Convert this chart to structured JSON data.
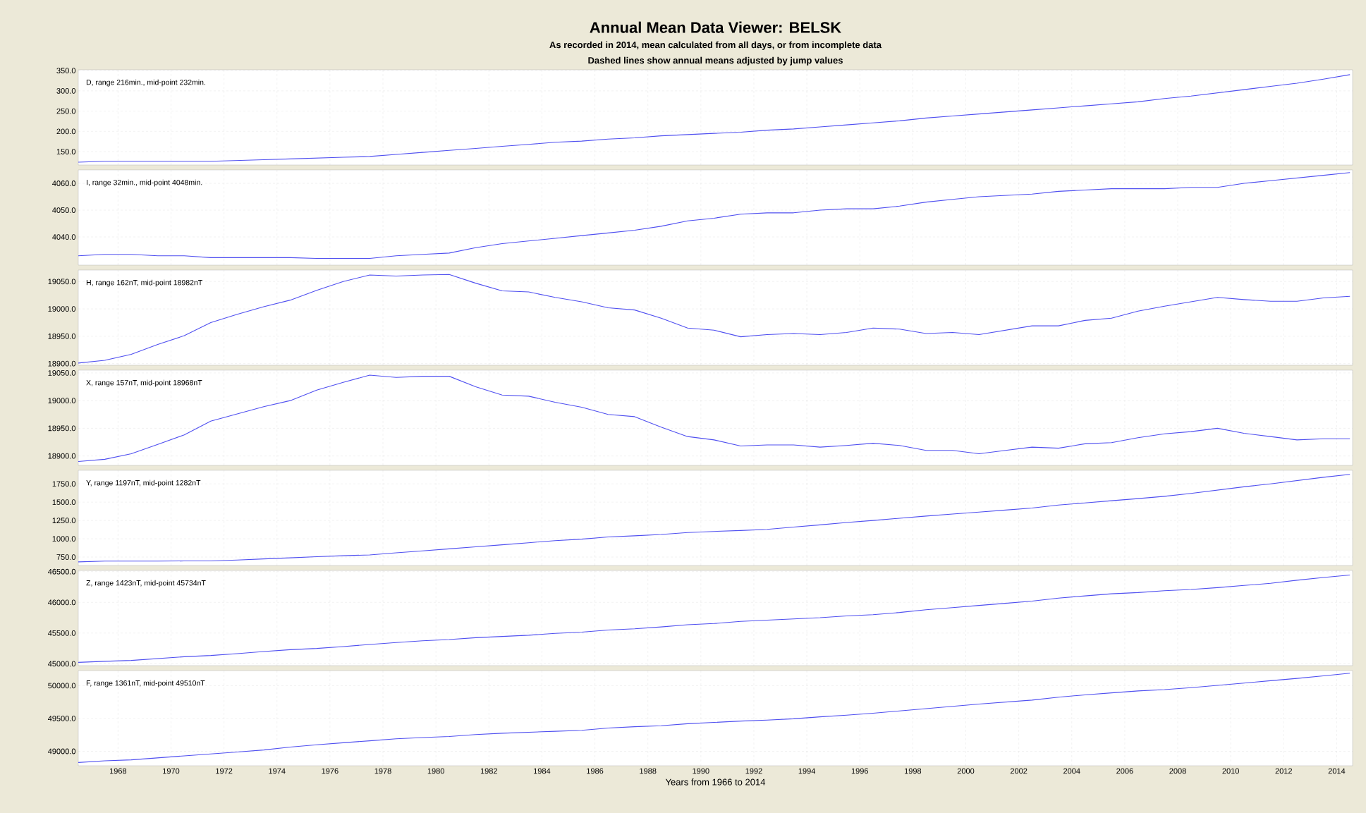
{
  "chart_data": [
    {
      "type": "line",
      "title": "Annual Mean Data Viewer: BELSK",
      "subtitle": "As recorded in 2014, mean calculated from all days, or from incomplete data",
      "annotations": [
        "D, range 216min., mid-point 232min.",
        "Dashed lines show annual means adjusted by jump values"
      ],
      "color": "#5050f0",
      "grid": true,
      "tick_labels": "y",
      "xlim": [
        1966.5,
        2014.6
      ],
      "xticks": [
        1968,
        1970,
        1972,
        1974,
        1976,
        1978,
        1980,
        1982,
        1984,
        1986,
        1988,
        1990,
        1992,
        1994,
        1996,
        1998,
        2000,
        2002,
        2004,
        2006,
        2008,
        2010,
        2012,
        2014
      ],
      "ylim": [
        117,
        352
      ],
      "yticks": [
        {
          "value": 150,
          "label": "150.0"
        },
        {
          "value": 200,
          "label": "200.0"
        },
        {
          "value": 250,
          "label": "250.0"
        },
        {
          "value": 300,
          "label": "300.0"
        },
        {
          "value": 350,
          "label": "350.0"
        }
      ],
      "x": [
        1966.5,
        1967.5,
        1968.5,
        1969.5,
        1970.5,
        1971.5,
        1972.5,
        1973.5,
        1974.5,
        1975.5,
        1976.5,
        1977.5,
        1978.5,
        1979.5,
        1980.5,
        1981.5,
        1982.5,
        1983.5,
        1984.5,
        1985.5,
        1986.5,
        1987.5,
        1988.5,
        1989.5,
        1990.5,
        1991.5,
        1992.5,
        1993.5,
        1994.5,
        1995.5,
        1996.5,
        1997.5,
        1998.5,
        1999.5,
        2000.5,
        2001.5,
        2002.5,
        2003.5,
        2004.5,
        2005.5,
        2006.5,
        2007.5,
        2008.5,
        2009.5,
        2010.5,
        2011.5,
        2012.5,
        2013.5,
        2014.5
      ],
      "values": [
        124,
        126,
        126,
        126,
        126,
        126,
        128,
        130,
        132,
        134,
        136,
        138,
        143,
        148,
        153,
        158,
        163,
        168,
        173,
        176,
        181,
        184,
        189,
        192,
        195,
        198,
        203,
        206,
        211,
        216,
        221,
        226,
        233,
        238,
        243,
        248,
        253,
        258,
        263,
        268,
        273,
        281,
        287,
        295,
        303,
        311,
        319,
        329,
        340
      ]
    },
    {
      "type": "line",
      "annotations": [
        "I, range 32min., mid-point 4048min."
      ],
      "color": "#5050f0",
      "grid": true,
      "tick_labels": "y",
      "xlim": [
        1966.5,
        2014.6
      ],
      "xticks": [
        1968,
        1970,
        1972,
        1974,
        1976,
        1978,
        1980,
        1982,
        1984,
        1986,
        1988,
        1990,
        1992,
        1994,
        1996,
        1998,
        2000,
        2002,
        2004,
        2006,
        2008,
        2010,
        2012,
        2014
      ],
      "ylim": [
        4029.5,
        4065
      ],
      "yticks": [
        {
          "value": 4040,
          "label": "4040.0"
        },
        {
          "value": 4050,
          "label": "4050.0"
        },
        {
          "value": 4060,
          "label": "4060.0"
        }
      ],
      "x": [
        1966.5,
        1967.5,
        1968.5,
        1969.5,
        1970.5,
        1971.5,
        1972.5,
        1973.5,
        1974.5,
        1975.5,
        1976.5,
        1977.5,
        1978.5,
        1979.5,
        1980.5,
        1981.5,
        1982.5,
        1983.5,
        1984.5,
        1985.5,
        1986.5,
        1987.5,
        1988.5,
        1989.5,
        1990.5,
        1991.5,
        1992.5,
        1993.5,
        1994.5,
        1995.5,
        1996.5,
        1997.5,
        1998.5,
        1999.5,
        2000.5,
        2001.5,
        2002.5,
        2003.5,
        2004.5,
        2005.5,
        2006.5,
        2007.5,
        2008.5,
        2009.5,
        2010.5,
        2011.5,
        2012.5,
        2013.5,
        2014.5
      ],
      "values": [
        4033,
        4033.5,
        4033.5,
        4033,
        4033,
        4032.3,
        4032.3,
        4032.3,
        4032.3,
        4032,
        4032,
        4032,
        4033,
        4033.5,
        4034,
        4036,
        4037.5,
        4038.5,
        4039.5,
        4040.5,
        4041.5,
        4042.5,
        4044,
        4046,
        4047,
        4048.5,
        4049,
        4049,
        4050,
        4050.5,
        4050.5,
        4051.5,
        4053,
        4054,
        4055,
        4055.5,
        4056,
        4057,
        4057.5,
        4058,
        4058,
        4058,
        4058.5,
        4058.5,
        4060,
        4061,
        4062,
        4063,
        4064
      ]
    },
    {
      "type": "line",
      "annotations": [
        "H, range 162nT, mid-point 18982nT"
      ],
      "color": "#5050f0",
      "grid": true,
      "tick_labels": "y",
      "xlim": [
        1966.5,
        2014.6
      ],
      "xticks": [
        1968,
        1970,
        1972,
        1974,
        1976,
        1978,
        1980,
        1982,
        1984,
        1986,
        1988,
        1990,
        1992,
        1994,
        1996,
        1998,
        2000,
        2002,
        2004,
        2006,
        2008,
        2010,
        2012,
        2014
      ],
      "ylim": [
        18897,
        19071
      ],
      "yticks": [
        {
          "value": 18900,
          "label": "18900.0"
        },
        {
          "value": 18950,
          "label": "18950.0"
        },
        {
          "value": 19000,
          "label": "19000.0"
        },
        {
          "value": 19050,
          "label": "19050.0"
        }
      ],
      "x": [
        1966.5,
        1967.5,
        1968.5,
        1969.5,
        1970.5,
        1971.5,
        1972.5,
        1973.5,
        1974.5,
        1975.5,
        1976.5,
        1977.5,
        1978.5,
        1979.5,
        1980.5,
        1981.5,
        1982.5,
        1983.5,
        1984.5,
        1985.5,
        1986.5,
        1987.5,
        1988.5,
        1989.5,
        1990.5,
        1991.5,
        1992.5,
        1993.5,
        1994.5,
        1995.5,
        1996.5,
        1997.5,
        1998.5,
        1999.5,
        2000.5,
        2001.5,
        2002.5,
        2003.5,
        2004.5,
        2005.5,
        2006.5,
        2007.5,
        2008.5,
        2009.5,
        2010.5,
        2011.5,
        2012.5,
        2013.5,
        2014.5
      ],
      "values": [
        18901,
        18906,
        18917,
        18935,
        18951,
        18975,
        18990,
        19004,
        19016,
        19034,
        19050,
        19062,
        19060,
        19062,
        19063,
        19047,
        19033,
        19031,
        19021,
        19013,
        19002,
        18998,
        18983,
        18965,
        18961,
        18949,
        18953,
        18955,
        18953,
        18957,
        18965,
        18963,
        18955,
        18957,
        18953,
        18961,
        18969,
        18969,
        18979,
        18983,
        18996,
        19005,
        19013,
        19021,
        19017,
        19014,
        19014,
        19020,
        19023
      ]
    },
    {
      "type": "line",
      "annotations": [
        "X, range 157nT, mid-point 18968nT"
      ],
      "color": "#5050f0",
      "grid": true,
      "tick_labels": "y",
      "xlim": [
        1966.5,
        2014.6
      ],
      "xticks": [
        1968,
        1970,
        1972,
        1974,
        1976,
        1978,
        1980,
        1982,
        1984,
        1986,
        1988,
        1990,
        1992,
        1994,
        1996,
        1998,
        2000,
        2002,
        2004,
        2006,
        2008,
        2010,
        2012,
        2014
      ],
      "ylim": [
        18883,
        19055
      ],
      "yticks": [
        {
          "value": 18900,
          "label": "18900.0"
        },
        {
          "value": 18950,
          "label": "18950.0"
        },
        {
          "value": 19000,
          "label": "19000.0"
        },
        {
          "value": 19050,
          "label": "19050.0"
        }
      ],
      "x": [
        1966.5,
        1967.5,
        1968.5,
        1969.5,
        1970.5,
        1971.5,
        1972.5,
        1973.5,
        1974.5,
        1975.5,
        1976.5,
        1977.5,
        1978.5,
        1979.5,
        1980.5,
        1981.5,
        1982.5,
        1983.5,
        1984.5,
        1985.5,
        1986.5,
        1987.5,
        1988.5,
        1989.5,
        1990.5,
        1991.5,
        1992.5,
        1993.5,
        1994.5,
        1995.5,
        1996.5,
        1997.5,
        1998.5,
        1999.5,
        2000.5,
        2001.5,
        2002.5,
        2003.5,
        2004.5,
        2005.5,
        2006.5,
        2007.5,
        2008.5,
        2009.5,
        2010.5,
        2011.5,
        2012.5,
        2013.5,
        2014.5
      ],
      "values": [
        18890,
        18894,
        18904,
        18921,
        18938,
        18963,
        18976,
        18989,
        19000,
        19019,
        19033,
        19046,
        19042,
        19044,
        19044,
        19025,
        19010,
        19008,
        18997,
        18988,
        18975,
        18971,
        18952,
        18935,
        18929,
        18918,
        18920,
        18920,
        18916,
        18919,
        18923,
        18919,
        18910,
        18910,
        18904,
        18910,
        18916,
        18914,
        18922,
        18924,
        18933,
        18940,
        18944,
        18950,
        18941,
        18935,
        18929,
        18931,
        18931
      ]
    },
    {
      "type": "line",
      "annotations": [
        "Y, range 1197nT, mid-point 1282nT"
      ],
      "color": "#5050f0",
      "grid": true,
      "tick_labels": "y",
      "xlim": [
        1966.5,
        2014.6
      ],
      "xticks": [
        1968,
        1970,
        1972,
        1974,
        1976,
        1978,
        1980,
        1982,
        1984,
        1986,
        1988,
        1990,
        1992,
        1994,
        1996,
        1998,
        2000,
        2002,
        2004,
        2006,
        2008,
        2010,
        2012,
        2014
      ],
      "ylim": [
        635,
        1935
      ],
      "yticks": [
        {
          "value": 750,
          "label": "750.0"
        },
        {
          "value": 1000,
          "label": "1000.0"
        },
        {
          "value": 1250,
          "label": "1250.0"
        },
        {
          "value": 1500,
          "label": "1500.0"
        },
        {
          "value": 1750,
          "label": "1750.0"
        }
      ],
      "x": [
        1966.5,
        1967.5,
        1968.5,
        1969.5,
        1970.5,
        1971.5,
        1972.5,
        1973.5,
        1974.5,
        1975.5,
        1976.5,
        1977.5,
        1978.5,
        1979.5,
        1980.5,
        1981.5,
        1982.5,
        1983.5,
        1984.5,
        1985.5,
        1986.5,
        1987.5,
        1988.5,
        1989.5,
        1990.5,
        1991.5,
        1992.5,
        1993.5,
        1994.5,
        1995.5,
        1996.5,
        1997.5,
        1998.5,
        1999.5,
        2000.5,
        2001.5,
        2002.5,
        2003.5,
        2004.5,
        2005.5,
        2006.5,
        2007.5,
        2008.5,
        2009.5,
        2010.5,
        2011.5,
        2012.5,
        2013.5,
        2014.5
      ],
      "values": [
        684,
        695,
        695,
        695,
        697,
        697,
        710,
        725,
        740,
        755,
        768,
        780,
        808,
        835,
        862,
        890,
        918,
        946,
        975,
        995,
        1025,
        1040,
        1058,
        1085,
        1100,
        1113,
        1128,
        1160,
        1190,
        1222,
        1250,
        1280,
        1310,
        1338,
        1365,
        1392,
        1420,
        1460,
        1490,
        1520,
        1548,
        1580,
        1620,
        1665,
        1710,
        1750,
        1795,
        1840,
        1880
      ]
    },
    {
      "type": "line",
      "annotations": [
        "Z, range 1423nT, mid-point 45734nT"
      ],
      "color": "#5050f0",
      "grid": true,
      "tick_labels": "y",
      "xlim": [
        1966.5,
        2014.6
      ],
      "xticks": [
        1968,
        1970,
        1972,
        1974,
        1976,
        1978,
        1980,
        1982,
        1984,
        1986,
        1988,
        1990,
        1992,
        1994,
        1996,
        1998,
        2000,
        2002,
        2004,
        2006,
        2008,
        2010,
        2012,
        2014
      ],
      "ylim": [
        44970,
        46520
      ],
      "yticks": [
        {
          "value": 45000,
          "label": "45000.0"
        },
        {
          "value": 45500,
          "label": "45500.0"
        },
        {
          "value": 46000,
          "label": "46000.0"
        },
        {
          "value": 46500,
          "label": "46500.0"
        }
      ],
      "x": [
        1966.5,
        1967.5,
        1968.5,
        1969.5,
        1970.5,
        1971.5,
        1972.5,
        1973.5,
        1974.5,
        1975.5,
        1976.5,
        1977.5,
        1978.5,
        1979.5,
        1980.5,
        1981.5,
        1982.5,
        1983.5,
        1984.5,
        1985.5,
        1986.5,
        1987.5,
        1988.5,
        1989.5,
        1990.5,
        1991.5,
        1992.5,
        1993.5,
        1994.5,
        1995.5,
        1996.5,
        1997.5,
        1998.5,
        1999.5,
        2000.5,
        2001.5,
        2002.5,
        2003.5,
        2004.5,
        2005.5,
        2006.5,
        2007.5,
        2008.5,
        2009.5,
        2010.5,
        2011.5,
        2012.5,
        2013.5,
        2014.5
      ],
      "values": [
        45023,
        45040,
        45055,
        45085,
        45115,
        45135,
        45165,
        45200,
        45230,
        45250,
        45280,
        45315,
        45345,
        45375,
        45395,
        45425,
        45445,
        45465,
        45495,
        45515,
        45550,
        45570,
        45600,
        45635,
        45655,
        45690,
        45710,
        45730,
        45750,
        45780,
        45800,
        45835,
        45880,
        45915,
        45950,
        45985,
        46020,
        46070,
        46105,
        46140,
        46160,
        46190,
        46210,
        46240,
        46275,
        46310,
        46360,
        46405,
        46445
      ]
    },
    {
      "type": "line",
      "annotations": [
        "F, range 1361nT, mid-point 49510nT"
      ],
      "xlabel": "Years from 1966 to 2014",
      "color": "#5050f0",
      "grid": true,
      "xlim": [
        1966.5,
        2014.6
      ],
      "xticks": [
        1968,
        1970,
        1972,
        1974,
        1976,
        1978,
        1980,
        1982,
        1984,
        1986,
        1988,
        1990,
        1992,
        1994,
        1996,
        1998,
        2000,
        2002,
        2004,
        2006,
        2008,
        2010,
        2012,
        2014
      ],
      "ylim": [
        48780,
        50230
      ],
      "yticks": [
        {
          "value": 49000,
          "label": "49000.0"
        },
        {
          "value": 49500,
          "label": "49500.0"
        },
        {
          "value": 50000,
          "label": "50000.0"
        }
      ],
      "x": [
        1966.5,
        1967.5,
        1968.5,
        1969.5,
        1970.5,
        1971.5,
        1972.5,
        1973.5,
        1974.5,
        1975.5,
        1976.5,
        1977.5,
        1978.5,
        1979.5,
        1980.5,
        1981.5,
        1982.5,
        1983.5,
        1984.5,
        1985.5,
        1986.5,
        1987.5,
        1988.5,
        1989.5,
        1990.5,
        1991.5,
        1992.5,
        1993.5,
        1994.5,
        1995.5,
        1996.5,
        1997.5,
        1998.5,
        1999.5,
        2000.5,
        2001.5,
        2002.5,
        2003.5,
        2004.5,
        2005.5,
        2006.5,
        2007.5,
        2008.5,
        2009.5,
        2010.5,
        2011.5,
        2012.5,
        2013.5,
        2014.5
      ],
      "values": [
        48830,
        48855,
        48870,
        48900,
        48930,
        48960,
        48990,
        49020,
        49065,
        49100,
        49130,
        49160,
        49190,
        49210,
        49225,
        49255,
        49275,
        49290,
        49305,
        49320,
        49355,
        49375,
        49390,
        49420,
        49440,
        49460,
        49475,
        49495,
        49525,
        49550,
        49580,
        49615,
        49650,
        49685,
        49720,
        49750,
        49780,
        49825,
        49860,
        49890,
        49920,
        49940,
        49970,
        50005,
        50040,
        50075,
        50110,
        50150,
        50190
      ]
    }
  ]
}
